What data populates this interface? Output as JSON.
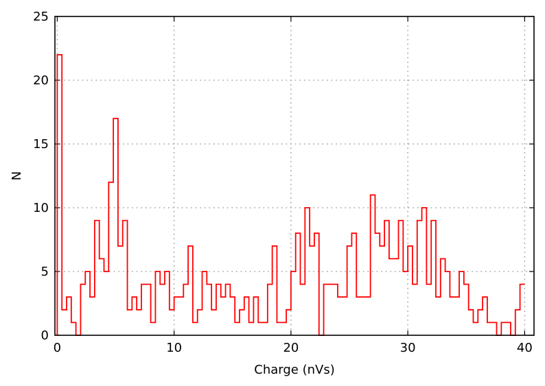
{
  "chart_data": {
    "type": "histogram",
    "title": "",
    "xlabel": "Charge (nVs)",
    "ylabel": "N",
    "xlim": [
      -0.2,
      40.8
    ],
    "ylim": [
      0,
      25
    ],
    "xticks": [
      0,
      10,
      20,
      30,
      40
    ],
    "yticks": [
      0,
      5,
      10,
      15,
      20,
      25
    ],
    "grid": true,
    "line_color": "#ff0000",
    "bin_start": 0,
    "bin_width": 0.4,
    "values": [
      22,
      2,
      3,
      1,
      0,
      4,
      5,
      3,
      9,
      6,
      5,
      12,
      17,
      7,
      9,
      2,
      3,
      2,
      4,
      4,
      1,
      5,
      4,
      5,
      2,
      3,
      3,
      4,
      7,
      1,
      2,
      5,
      4,
      2,
      4,
      3,
      4,
      3,
      1,
      2,
      3,
      1,
      3,
      1,
      1,
      4,
      7,
      1,
      1,
      2,
      5,
      8,
      4,
      10,
      7,
      8,
      0,
      4,
      4,
      4,
      3,
      3,
      7,
      8,
      3,
      3,
      3,
      11,
      8,
      7,
      9,
      6,
      6,
      9,
      5,
      7,
      4,
      9,
      10,
      4,
      9,
      3,
      6,
      5,
      3,
      3,
      5,
      4,
      2,
      1,
      2,
      3,
      1,
      1,
      0,
      1,
      1,
      0,
      2,
      4
    ]
  }
}
